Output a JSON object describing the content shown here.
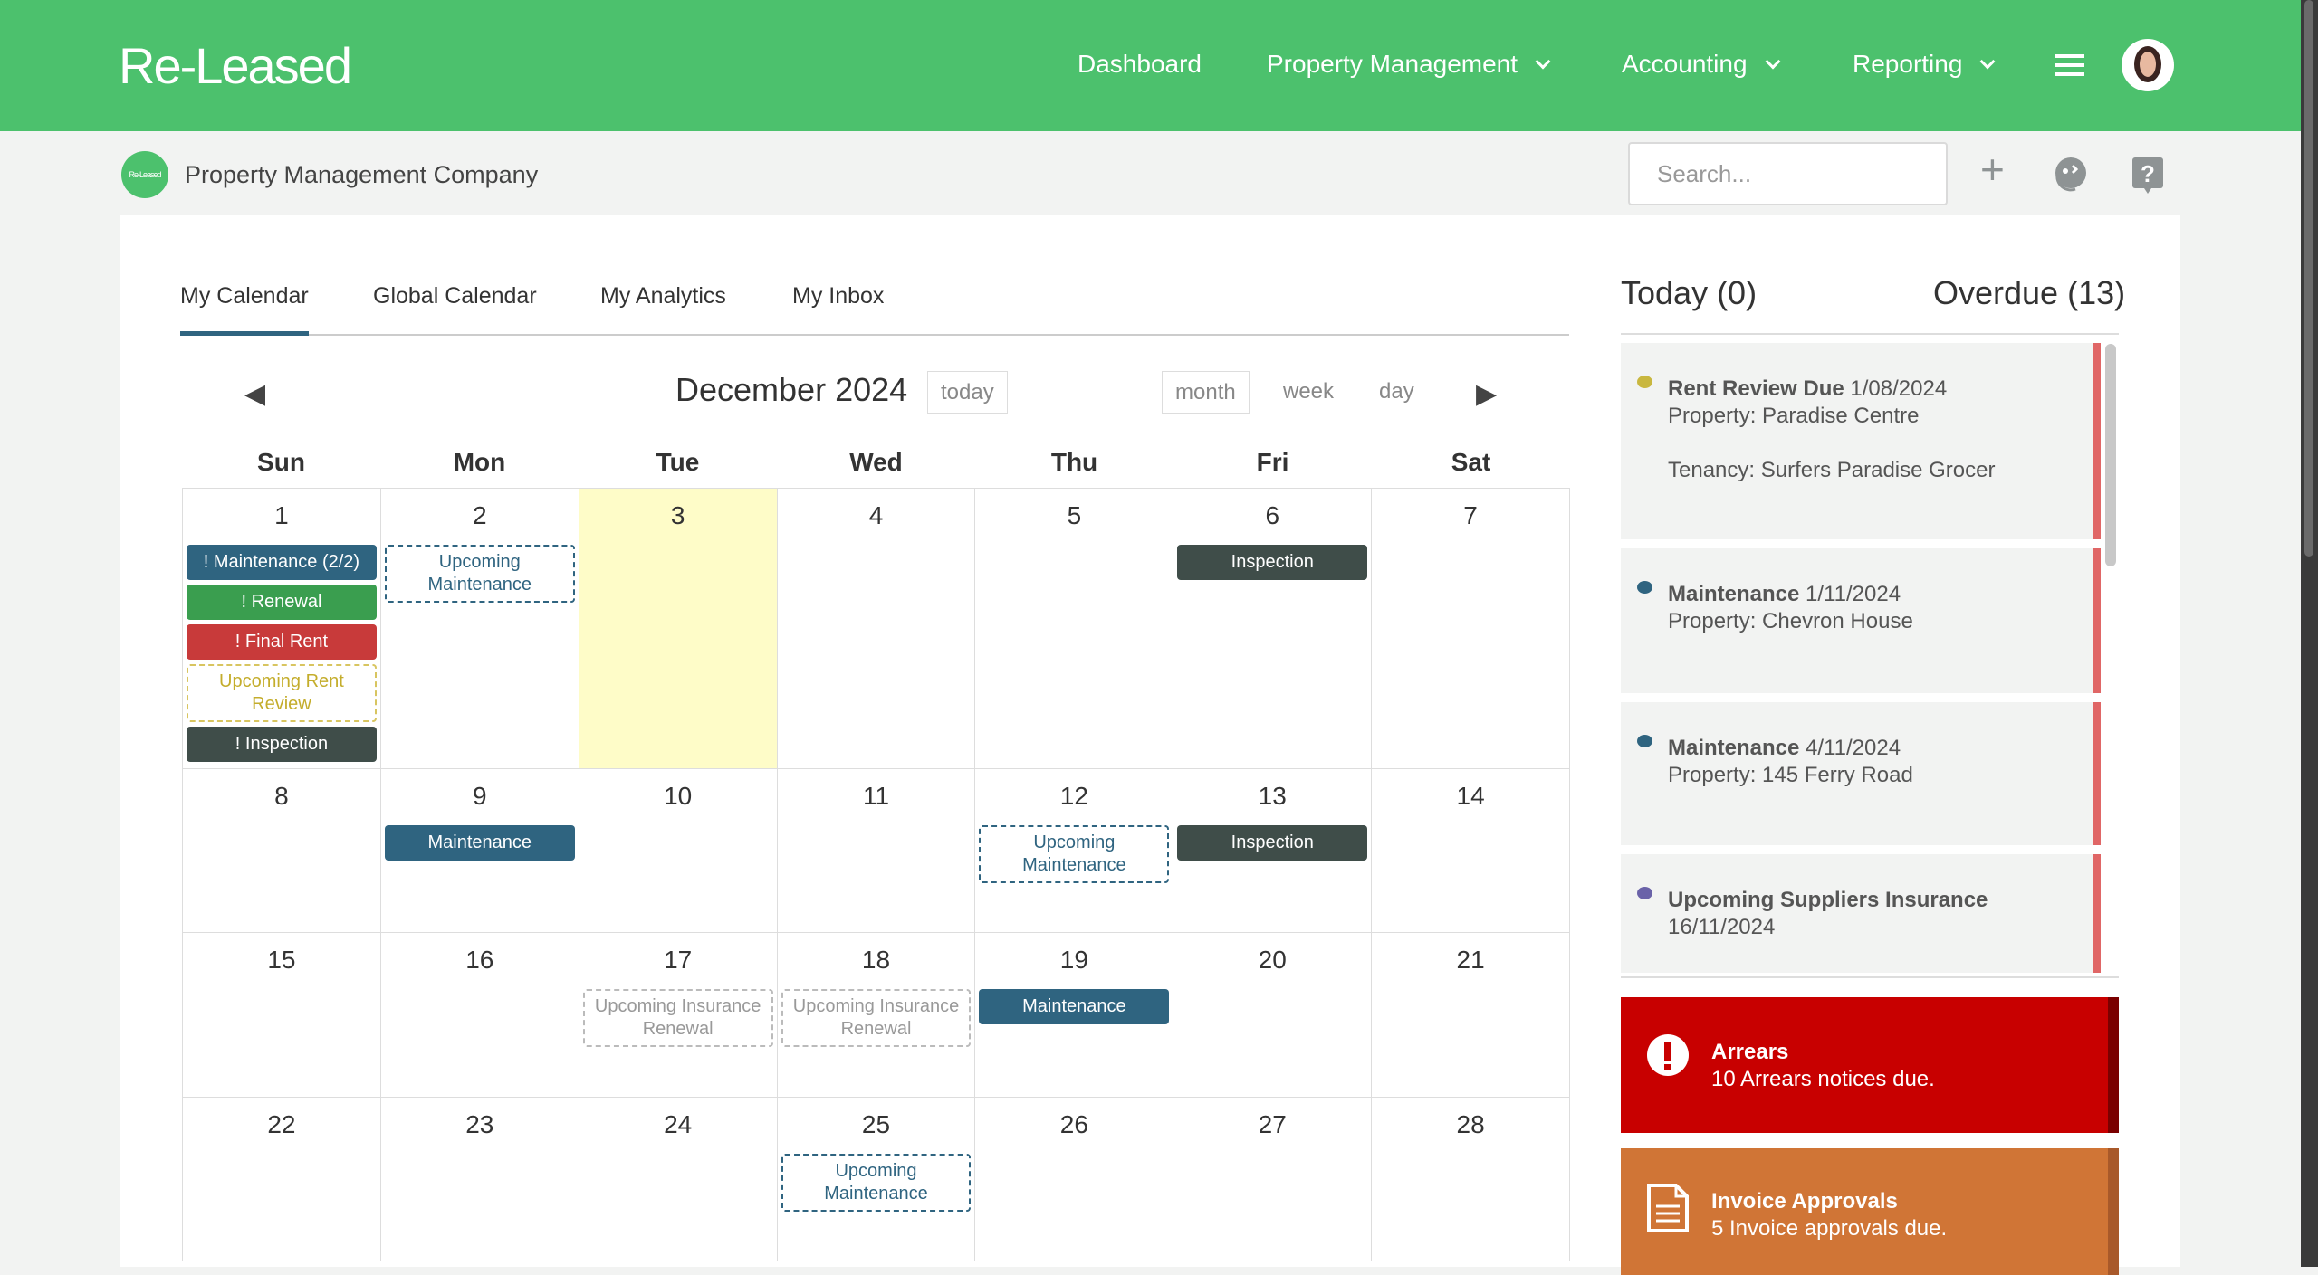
{
  "header": {
    "logo": "Re-Leased",
    "nav": [
      {
        "label": "Dashboard",
        "dropdown": false
      },
      {
        "label": "Property Management",
        "dropdown": true
      },
      {
        "label": "Accounting",
        "dropdown": true
      },
      {
        "label": "Reporting",
        "dropdown": true
      }
    ],
    "menu_icon": "hamburger-icon",
    "avatar": "user-avatar"
  },
  "subheader": {
    "company_logo": "Re-Leased",
    "company": "Property Management Company",
    "search_placeholder": "Search...",
    "icons": [
      "plus-icon",
      "chat-support-icon",
      "help-icon"
    ]
  },
  "tabs": [
    {
      "label": "My Calendar",
      "active": true
    },
    {
      "label": "Global Calendar"
    },
    {
      "label": "My Analytics"
    },
    {
      "label": "My Inbox"
    }
  ],
  "calendar": {
    "title": "December 2024",
    "today_label": "today",
    "views": [
      "month",
      "week",
      "day"
    ],
    "active_view": "month",
    "days_of_week": [
      "Sun",
      "Mon",
      "Tue",
      "Wed",
      "Thu",
      "Fri",
      "Sat"
    ],
    "today": 3,
    "weeks": [
      [
        {
          "d": "1",
          "events": [
            {
              "type": "maintenance",
              "label": "! Maintenance (2/2)"
            },
            {
              "type": "renewal",
              "label": "! Renewal"
            },
            {
              "type": "finalrent",
              "label": "! Final Rent"
            },
            {
              "type": "up-rent",
              "label": "Upcoming Rent Review"
            },
            {
              "type": "inspection",
              "label": "! Inspection"
            }
          ]
        },
        {
          "d": "2",
          "events": [
            {
              "type": "up-maint",
              "label": "Upcoming Maintenance"
            }
          ]
        },
        {
          "d": "3",
          "events": []
        },
        {
          "d": "4",
          "events": []
        },
        {
          "d": "5",
          "events": []
        },
        {
          "d": "6",
          "events": [
            {
              "type": "inspection",
              "label": "Inspection"
            }
          ]
        },
        {
          "d": "7",
          "events": []
        }
      ],
      [
        {
          "d": "8",
          "events": []
        },
        {
          "d": "9",
          "events": [
            {
              "type": "maintenance",
              "label": "Maintenance"
            }
          ]
        },
        {
          "d": "10",
          "events": []
        },
        {
          "d": "11",
          "events": []
        },
        {
          "d": "12",
          "events": [
            {
              "type": "up-maint",
              "label": "Upcoming Maintenance"
            }
          ]
        },
        {
          "d": "13",
          "events": [
            {
              "type": "inspection",
              "label": "Inspection"
            }
          ]
        },
        {
          "d": "14",
          "events": []
        }
      ],
      [
        {
          "d": "15",
          "events": []
        },
        {
          "d": "16",
          "events": []
        },
        {
          "d": "17",
          "events": [
            {
              "type": "up-ins",
              "label": "Upcoming Insurance Renewal"
            }
          ]
        },
        {
          "d": "18",
          "events": [
            {
              "type": "up-ins",
              "label": "Upcoming Insurance Renewal"
            }
          ]
        },
        {
          "d": "19",
          "events": [
            {
              "type": "maintenance",
              "label": "Maintenance"
            }
          ]
        },
        {
          "d": "20",
          "events": []
        },
        {
          "d": "21",
          "events": []
        }
      ],
      [
        {
          "d": "22",
          "events": []
        },
        {
          "d": "23",
          "events": []
        },
        {
          "d": "24",
          "events": []
        },
        {
          "d": "25",
          "events": [
            {
              "type": "up-maint",
              "label": "Upcoming Maintenance"
            }
          ]
        },
        {
          "d": "26",
          "events": []
        },
        {
          "d": "27",
          "events": []
        },
        {
          "d": "28",
          "events": []
        }
      ]
    ]
  },
  "right_panel": {
    "today": "Today (0)",
    "overdue": "Overdue (13)",
    "items": [
      {
        "title": "Rent Review Due",
        "date": "1/08/2024",
        "line2": "Property: Paradise Centre",
        "line3": "Tenancy: Surfers Paradise Grocer",
        "color": "#c9b73f"
      },
      {
        "title": "Maintenance",
        "date": "1/11/2024",
        "line2": "Property: Chevron House",
        "color": "#2f6480"
      },
      {
        "title": "Maintenance",
        "date": "4/11/2024",
        "line2": "Property: 145 Ferry Road",
        "color": "#2f6480"
      },
      {
        "title": "Upcoming Suppliers Insurance",
        "date": "16/11/2024",
        "color": "#6a62a8"
      }
    ],
    "alerts": [
      {
        "title": "Arrears",
        "text": "10 Arrears notices due.",
        "icon": "exclamation-icon",
        "color": "#c80000"
      },
      {
        "title": "Invoice Approvals",
        "text": "5 Invoice approvals due.",
        "icon": "document-icon",
        "color": "#d07536"
      }
    ]
  }
}
